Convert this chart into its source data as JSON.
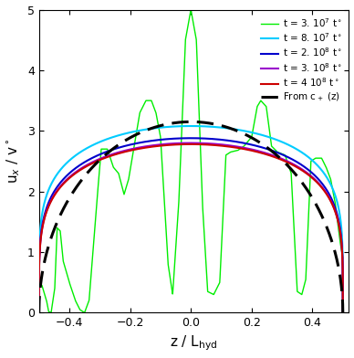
{
  "title": "",
  "xlabel": "z / L_{hyd}",
  "ylabel": "u_x / v^o",
  "xlim": [
    -0.5,
    0.52
  ],
  "ylim": [
    0,
    5
  ],
  "yticks": [
    0,
    1,
    2,
    3,
    4,
    5
  ],
  "xticks": [
    -0.4,
    -0.2,
    0.0,
    0.2,
    0.4
  ],
  "legend_entries": [
    "t = 3. 10$^7$ t$^\\circ$",
    "t = 8. 10$^7$ t$^\\circ$",
    "t = 2. 10$^8$ t$^\\circ$",
    "t = 3. 10$^8$ t$^\\circ$",
    "t = 4 10$^8$ t$^\\circ$",
    "From c$_+$ (z)"
  ],
  "line_colors": [
    "#00ee00",
    "#00ccff",
    "#0000cc",
    "#9900cc",
    "#cc0000",
    "#000000"
  ],
  "background_color": "#ffffff"
}
